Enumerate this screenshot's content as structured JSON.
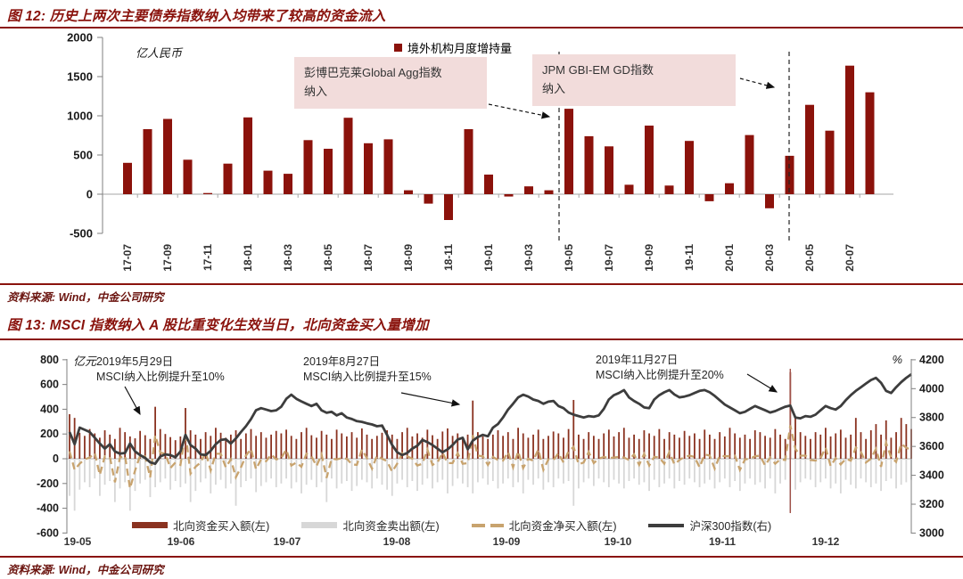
{
  "colors": {
    "accent_maroon": "#8a130d",
    "bar_dark_red": "#8b120b",
    "callout_pink": "#f2dcdb",
    "buy_bar_red": "#8a3220",
    "sell_bar_gray": "#d7d7d7",
    "net_line_tan": "#c8a36e",
    "csi_line_dark": "#3d3d3d"
  },
  "fig12": {
    "title": "图 12: 历史上两次主要债券指数纳入均带来了较高的资金流入",
    "unit": "亿人民币",
    "legend": "境外机构月度增持量",
    "annotations": [
      {
        "text": "彭博巴克莱Global Agg指数\n纳入"
      },
      {
        "text": "JPM GBI-EM GD指数\n纳入"
      }
    ],
    "source": "资料来源: Wind，中金公司研究"
  },
  "fig13": {
    "title": "图 13: MSCI 指数纳入 A 股比重变化生效当日，北向资金买入量增加",
    "unit_left": "亿元",
    "unit_right": "%",
    "annotations": [
      {
        "text": "2019年5月29日\nMSCI纳入比例提升至10%"
      },
      {
        "text": "2019年8月27日\nMSCI纳入比例提升至15%"
      },
      {
        "text": "2019年11月27日\nMSCI纳入比例提升至20%"
      }
    ],
    "legend": [
      "北向资金买入额(左)",
      "北向资金卖出额(左)",
      "北向资金净买入额(左)",
      "沪深300指数(右)"
    ],
    "source": "资料来源: Wind，中金公司研究"
  },
  "chart_data": [
    {
      "type": "bar",
      "title": "境外机构月度增持量",
      "ylabel": "亿人民币",
      "ylim": [
        -500,
        2000
      ],
      "yticks": [
        2000,
        1500,
        1000,
        500,
        0,
        -500
      ],
      "categories": [
        "17-07",
        "17-08",
        "17-09",
        "17-10",
        "17-11",
        "17-12",
        "18-01",
        "18-02",
        "18-03",
        "18-04",
        "18-05",
        "18-06",
        "18-07",
        "18-08",
        "18-09",
        "18-10",
        "18-11",
        "18-12",
        "19-01",
        "19-02",
        "19-03",
        "19-04",
        "19-05",
        "19-06",
        "19-07",
        "19-08",
        "19-09",
        "19-10",
        "19-11",
        "19-12",
        "20-01",
        "20-02",
        "20-03",
        "20-04",
        "20-05",
        "20-06",
        "20-07",
        "20-08"
      ],
      "values": [
        400,
        830,
        960,
        440,
        15,
        390,
        980,
        300,
        260,
        690,
        580,
        975,
        650,
        700,
        50,
        -120,
        -330,
        830,
        250,
        -30,
        100,
        50,
        1090,
        740,
        610,
        120,
        875,
        110,
        680,
        -90,
        140,
        755,
        -180,
        490,
        1140,
        810,
        1640,
        1300
      ],
      "xtick_labels": [
        "17-07",
        "17-09",
        "17-11",
        "18-01",
        "18-03",
        "18-05",
        "18-07",
        "18-09",
        "18-11",
        "19-01",
        "19-03",
        "19-05",
        "19-07",
        "19-09",
        "19-11",
        "20-01",
        "20-03",
        "20-05",
        "20-07"
      ],
      "event_lines": [
        {
          "label": "彭博巴克莱Global Agg指数纳入",
          "between": "19-04/19-05"
        },
        {
          "label": "JPM GBI-EM GD指数纳入",
          "between": "20-03/20-04"
        }
      ]
    },
    {
      "type": "combo",
      "months": [
        "19-05",
        "19-06",
        "19-07",
        "19-08",
        "19-09",
        "19-10",
        "19-11",
        "19-12"
      ],
      "trading_days_per_month": 21,
      "left_ylabel": "亿元",
      "right_ylabel": "%",
      "left_ylim": [
        -600,
        800
      ],
      "left_yticks": [
        800,
        600,
        400,
        200,
        0,
        -200,
        -400,
        -600
      ],
      "right_ylim": [
        3000,
        4200
      ],
      "right_yticks": [
        4200,
        4000,
        3800,
        3600,
        3400,
        3200,
        3000
      ],
      "xtick_labels": [
        "19-05",
        "19-06",
        "19-07",
        "19-08",
        "19-09",
        "19-10",
        "19-11",
        "19-12"
      ],
      "event_days": [
        {
          "day": 17,
          "label": "2019年5月29日 MSCI纳入比例提升至10%"
        },
        {
          "day": 80,
          "label": "2019年8月27日 MSCI纳入比例提升至15%"
        },
        {
          "day": 143,
          "label": "2019年11月27日 MSCI纳入比例提升至20%"
        }
      ],
      "series": [
        {
          "name": "北向资金买入额(左)",
          "type": "bar",
          "axis": "left",
          "color": "#8a3220",
          "values": [
            360,
            330,
            210,
            185,
            240,
            205,
            170,
            230,
            195,
            160,
            250,
            215,
            180,
            165,
            225,
            190,
            160,
            420,
            240,
            200,
            175,
            150,
            180,
            410,
            230,
            195,
            160,
            215,
            185,
            250,
            210,
            170,
            195,
            230,
            160,
            205,
            240,
            185,
            215,
            170,
            195,
            225,
            205,
            235,
            185,
            160,
            215,
            250,
            190,
            170,
            225,
            195,
            160,
            235,
            205,
            180,
            215,
            170,
            245,
            195,
            160,
            185,
            210,
            230,
            195,
            160,
            215,
            250,
            180,
            205,
            170,
            235,
            190,
            160,
            220,
            245,
            185,
            205,
            160,
            195,
            470,
            215,
            180,
            160,
            195,
            230,
            185,
            215,
            160,
            250,
            205,
            170,
            195,
            235,
            160,
            185,
            220,
            205,
            170,
            240,
            475,
            195,
            160,
            215,
            185,
            160,
            205,
            235,
            180,
            215,
            250,
            170,
            195,
            160,
            230,
            205,
            185,
            240,
            160,
            215,
            195,
            170,
            225,
            185,
            205,
            160,
            235,
            195,
            160,
            215,
            180,
            250,
            205,
            170,
            195,
            160,
            230,
            215,
            185,
            170,
            240,
            195,
            160,
            700,
            330,
            215,
            185,
            160,
            215,
            195,
            250,
            180,
            205,
            235,
            170,
            195,
            330,
            215,
            160,
            230,
            280,
            195,
            310,
            170,
            215,
            330,
            280,
            240
          ]
        },
        {
          "name": "北向资金卖出额(左)",
          "type": "bar",
          "axis": "left",
          "color": "#d7d7d7",
          "values": [
            -300,
            -420,
            -250,
            -190,
            -230,
            -160,
            -300,
            -210,
            -180,
            -350,
            -240,
            -190,
            -420,
            -260,
            -200,
            -170,
            -310,
            -230,
            -190,
            -160,
            -250,
            -180,
            -230,
            -200,
            -350,
            -260,
            -190,
            -160,
            -280,
            -210,
            -170,
            -240,
            -200,
            -380,
            -230,
            -180,
            -160,
            -270,
            -220,
            -190,
            -160,
            -230,
            -200,
            -160,
            -240,
            -190,
            -280,
            -210,
            -170,
            -230,
            -190,
            -350,
            -160,
            -240,
            -200,
            -180,
            -260,
            -220,
            -170,
            -190,
            -240,
            -160,
            -210,
            -250,
            -300,
            -200,
            -170,
            -230,
            -180,
            -260,
            -210,
            -160,
            -240,
            -190,
            -170,
            -280,
            -220,
            -160,
            -200,
            -230,
            -280,
            -190,
            -160,
            -210,
            -180,
            -240,
            -200,
            -160,
            -230,
            -190,
            -280,
            -170,
            -210,
            -160,
            -250,
            -190,
            -230,
            -160,
            -200,
            -180,
            -380,
            -240,
            -190,
            -160,
            -220,
            -160,
            -190,
            -230,
            -170,
            -200,
            -240,
            -180,
            -160,
            -210,
            -190,
            -260,
            -170,
            -230,
            -200,
            -160,
            -240,
            -180,
            -210,
            -160,
            -190,
            -230,
            -200,
            -170,
            -240,
            -190,
            -160,
            -230,
            -180,
            -260,
            -200,
            -160,
            -210,
            -190,
            -240,
            -160,
            -280,
            -200,
            -170,
            -430,
            -250,
            -190,
            -160,
            -170,
            -230,
            -190,
            -160,
            -240,
            -200,
            -280,
            -170,
            -210,
            -240,
            -160,
            -190,
            -230,
            -200,
            -260,
            -180,
            -160,
            -240,
            -210,
            -190,
            -170
          ]
        },
        {
          "name": "北向资金净买入额(左)",
          "type": "dashed-line",
          "axis": "left",
          "color": "#c8a36e",
          "values": [
            60,
            -90,
            -40,
            -5,
            10,
            45,
            -130,
            20,
            15,
            -190,
            10,
            25,
            -240,
            -95,
            25,
            20,
            -150,
            190,
            50,
            40,
            -75,
            -30,
            -50,
            210,
            -120,
            -65,
            -30,
            55,
            -95,
            40,
            40,
            -70,
            -5,
            -150,
            -70,
            25,
            80,
            -85,
            -5,
            -20,
            35,
            -5,
            5,
            75,
            -55,
            -30,
            -65,
            40,
            20,
            -60,
            35,
            -155,
            0,
            -5,
            5,
            0,
            -45,
            -50,
            75,
            5,
            -80,
            25,
            0,
            -20,
            -105,
            -40,
            45,
            20,
            0,
            -55,
            -40,
            75,
            -50,
            -30,
            50,
            -35,
            -35,
            45,
            -40,
            -35,
            190,
            25,
            20,
            -50,
            15,
            -10,
            -15,
            55,
            -70,
            60,
            -75,
            0,
            -15,
            75,
            -90,
            -5,
            -10,
            45,
            -30,
            60,
            95,
            -45,
            -30,
            55,
            -35,
            0,
            15,
            5,
            10,
            15,
            10,
            -10,
            35,
            -50,
            40,
            -55,
            15,
            10,
            -40,
            55,
            -45,
            -10,
            15,
            25,
            15,
            -70,
            35,
            25,
            -80,
            25,
            20,
            20,
            25,
            -90,
            -5,
            0,
            20,
            25,
            -55,
            10,
            -40,
            -5,
            -10,
            270,
            80,
            25,
            25,
            -10,
            -15,
            5,
            90,
            -60,
            5,
            -45,
            0,
            -15,
            90,
            55,
            -30,
            0,
            80,
            -65,
            130,
            10,
            -25,
            120,
            90,
            70
          ]
        },
        {
          "name": "沪深300指数(右)",
          "type": "line",
          "axis": "right",
          "color": "#3d3d3d",
          "values": [
            3700,
            3615,
            3730,
            3715,
            3700,
            3660,
            3620,
            3585,
            3615,
            3565,
            3550,
            3555,
            3620,
            3565,
            3540,
            3520,
            3490,
            3480,
            3530,
            3545,
            3540,
            3525,
            3565,
            3680,
            3610,
            3585,
            3545,
            3540,
            3570,
            3615,
            3645,
            3650,
            3620,
            3655,
            3700,
            3740,
            3790,
            3850,
            3865,
            3855,
            3845,
            3850,
            3875,
            3930,
            3958,
            3930,
            3912,
            3895,
            3880,
            3895,
            3850,
            3833,
            3840,
            3815,
            3830,
            3800,
            3790,
            3775,
            3770,
            3760,
            3752,
            3740,
            3745,
            3680,
            3610,
            3560,
            3540,
            3555,
            3585,
            3605,
            3645,
            3630,
            3610,
            3585,
            3560,
            3580,
            3610,
            3648,
            3660,
            3580,
            3640,
            3665,
            3680,
            3670,
            3730,
            3755,
            3800,
            3855,
            3895,
            3940,
            3958,
            3945,
            3925,
            3915,
            3895,
            3910,
            3915,
            3880,
            3865,
            3835,
            3820,
            3810,
            3800,
            3810,
            3805,
            3815,
            3860,
            3925,
            3955,
            3970,
            3990,
            3940,
            3915,
            3895,
            3870,
            3865,
            3925,
            3955,
            3975,
            3990,
            3960,
            3940,
            3945,
            3955,
            3970,
            3985,
            3990,
            3975,
            3950,
            3920,
            3890,
            3870,
            3850,
            3830,
            3840,
            3860,
            3880,
            3865,
            3850,
            3835,
            3845,
            3860,
            3875,
            3883,
            3800,
            3795,
            3810,
            3805,
            3820,
            3850,
            3880,
            3865,
            3855,
            3880,
            3920,
            3955,
            3985,
            4010,
            4035,
            4060,
            4075,
            4040,
            3985,
            3970,
            4010,
            4045,
            4075,
            4100
          ]
        }
      ]
    }
  ]
}
